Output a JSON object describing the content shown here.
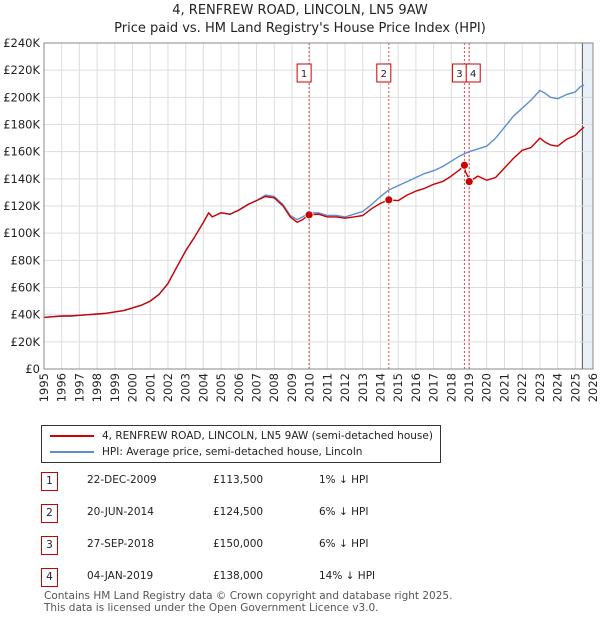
{
  "colors": {
    "property": "#cc0000",
    "hpi": "#5b8fd1",
    "marker": "#cc0000",
    "grid": "#dddddd",
    "shade": "#dce6f5"
  },
  "chart_data": {
    "type": "line",
    "title": "4, RENFREW ROAD, LINCOLN, LN5 9AW",
    "subtitle": "Price paid vs. HM Land Registry's House Price Index (HPI)",
    "ylim": [
      0,
      240000
    ],
    "xlim": [
      1995,
      2026
    ],
    "y_ticks": [
      0,
      20000,
      40000,
      60000,
      80000,
      100000,
      120000,
      140000,
      160000,
      180000,
      200000,
      220000,
      240000
    ],
    "y_tick_labels": [
      "£0",
      "£20K",
      "£40K",
      "£60K",
      "£80K",
      "£100K",
      "£120K",
      "£140K",
      "£160K",
      "£180K",
      "£200K",
      "£220K",
      "£240K"
    ],
    "x_ticks": [
      1995,
      1996,
      1997,
      1998,
      1999,
      2000,
      2001,
      2002,
      2003,
      2004,
      2005,
      2006,
      2007,
      2008,
      2009,
      2010,
      2011,
      2012,
      2013,
      2014,
      2015,
      2016,
      2017,
      2018,
      2019,
      2020,
      2021,
      2022,
      2023,
      2024,
      2025,
      2026
    ],
    "x_tick_labels": [
      "1995",
      "1996",
      "1997",
      "1998",
      "1999",
      "2000",
      "2001",
      "2002",
      "2003",
      "2004",
      "2005",
      "2006",
      "2007",
      "2008",
      "2009",
      "2010",
      "2011",
      "2012",
      "2013",
      "2014",
      "2015",
      "2016",
      "2017",
      "2018",
      "2019",
      "2020",
      "2021",
      "2022",
      "2023",
      "2024",
      "2025",
      "2026"
    ],
    "grid": true,
    "series": [
      {
        "name": "4, RENFREW ROAD, LINCOLN, LN5 9AW (semi-detached house)",
        "x": [
          1995.0,
          1995.5,
          1996.0,
          1996.5,
          1997.0,
          1997.5,
          1998.0,
          1998.5,
          1999.0,
          1999.5,
          2000.0,
          2000.5,
          2001.0,
          2001.5,
          2002.0,
          2002.5,
          2003.0,
          2003.5,
          2004.0,
          2004.3,
          2004.5,
          2005.0,
          2005.5,
          2006.0,
          2006.5,
          2007.0,
          2007.5,
          2008.0,
          2008.5,
          2008.9,
          2009.3,
          2009.6,
          2009.97,
          2010.5,
          2011.0,
          2011.5,
          2012.0,
          2012.5,
          2013.0,
          2013.5,
          2014.0,
          2014.47,
          2014.47,
          2015.0,
          2015.5,
          2016.0,
          2016.5,
          2017.0,
          2017.5,
          2018.0,
          2018.5,
          2018.74,
          2018.74,
          2018.8,
          2019.01,
          2019.01,
          2019.5,
          2020.0,
          2020.5,
          2021.0,
          2021.5,
          2022.0,
          2022.5,
          2023.0,
          2023.3,
          2023.6,
          2024.0,
          2024.5,
          2025.0,
          2025.3,
          2025.5
        ],
        "values": [
          38000,
          38500,
          39000,
          39000,
          39500,
          40000,
          40500,
          41000,
          42000,
          43000,
          45000,
          47000,
          50000,
          55000,
          63000,
          75000,
          87000,
          97000,
          108000,
          115000,
          112000,
          115000,
          114000,
          117000,
          121000,
          124000,
          127000,
          126000,
          120000,
          112000,
          108000,
          110000,
          113500,
          114000,
          112000,
          112000,
          111000,
          112000,
          113000,
          118000,
          122000,
          124500,
          124500,
          124000,
          128000,
          131000,
          133000,
          136000,
          138000,
          142000,
          147000,
          150000,
          150000,
          145000,
          140000,
          138000,
          142000,
          139000,
          141000,
          148000,
          155000,
          161000,
          163000,
          170000,
          167000,
          165000,
          164000,
          169000,
          172000,
          176000,
          178000
        ]
      },
      {
        "name": "HPI: Average price, semi-detached house, Lincoln",
        "x": [
          1995.0,
          1995.5,
          1996.0,
          1996.5,
          1997.0,
          1997.5,
          1998.0,
          1998.5,
          1999.0,
          1999.5,
          2000.0,
          2000.5,
          2001.0,
          2001.5,
          2002.0,
          2002.5,
          2003.0,
          2003.5,
          2004.0,
          2004.3,
          2004.5,
          2005.0,
          2005.5,
          2006.0,
          2006.5,
          2007.0,
          2007.5,
          2008.0,
          2008.5,
          2008.9,
          2009.3,
          2009.6,
          2010.0,
          2010.5,
          2011.0,
          2011.5,
          2012.0,
          2012.5,
          2013.0,
          2013.5,
          2014.0,
          2014.5,
          2015.0,
          2015.5,
          2016.0,
          2016.5,
          2017.0,
          2017.5,
          2018.0,
          2018.5,
          2019.0,
          2019.5,
          2020.0,
          2020.5,
          2021.0,
          2021.5,
          2022.0,
          2022.5,
          2023.0,
          2023.3,
          2023.6,
          2024.0,
          2024.5,
          2025.0,
          2025.3,
          2025.5
        ],
        "values": [
          38000,
          38500,
          39000,
          39000,
          39500,
          40000,
          40500,
          41000,
          42000,
          43000,
          45000,
          47000,
          50000,
          55000,
          63000,
          75000,
          87000,
          97000,
          108000,
          115000,
          112000,
          115000,
          114000,
          117000,
          121000,
          124000,
          128000,
          127000,
          121000,
          113000,
          110000,
          112000,
          115000,
          115000,
          113000,
          113000,
          112000,
          114000,
          116000,
          121000,
          127000,
          132000,
          135000,
          138000,
          141000,
          144000,
          146000,
          149000,
          153000,
          157000,
          160000,
          162000,
          164000,
          170000,
          178000,
          186000,
          192000,
          198000,
          205000,
          203000,
          200000,
          199000,
          202000,
          204000,
          208000,
          209000
        ]
      }
    ],
    "transactions": [
      {
        "num": "1",
        "x": 2009.97,
        "value": 113500,
        "date": "22-DEC-2009",
        "price": "£113,500",
        "delta": "1% ↓ HPI"
      },
      {
        "num": "2",
        "x": 2014.47,
        "value": 124500,
        "date": "20-JUN-2014",
        "price": "£124,500",
        "delta": "6% ↓ HPI"
      },
      {
        "num": "3",
        "x": 2018.74,
        "value": 150000,
        "date": "27-SEP-2018",
        "price": "£150,000",
        "delta": "6% ↓ HPI"
      },
      {
        "num": "4",
        "x": 2019.01,
        "value": 138000,
        "date": "04-JAN-2019",
        "price": "£138,000",
        "delta": "14% ↓ HPI"
      }
    ],
    "shade_from": 2025.4
  },
  "legend": {
    "property_label": "4, RENFREW ROAD, LINCOLN, LN5 9AW (semi-detached house)",
    "hpi_label": "HPI: Average price, semi-detached house, Lincoln"
  },
  "footer": {
    "line1": "Contains HM Land Registry data © Crown copyright and database right 2025.",
    "line2": "This data is licensed under the Open Government Licence v3.0."
  }
}
